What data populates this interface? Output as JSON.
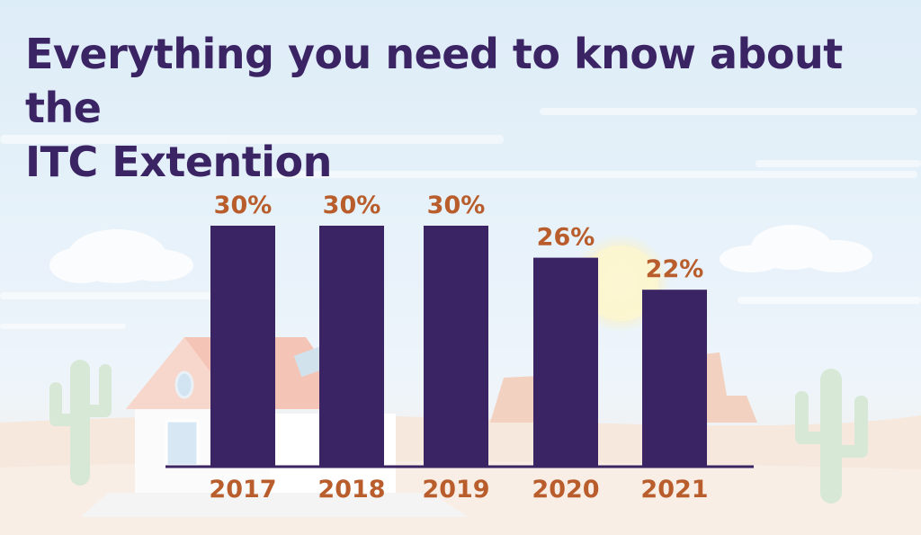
{
  "title_lines": [
    "Everything you need to know about the",
    "ITC Extention"
  ],
  "colors": {
    "title": "#3b2464",
    "bar": "#3b2464",
    "label": "#b85d2b",
    "axis": "#3b2464",
    "sky_top": "#dcecf7",
    "sky_bottom": "#eef5fb",
    "ground": "#f3e1d3"
  },
  "chart_data": {
    "type": "bar",
    "title": "Everything you need to know about the ITC Extention",
    "categories": [
      "2017",
      "2018",
      "2019",
      "2020",
      "2021"
    ],
    "values": [
      30,
      30,
      30,
      26,
      22
    ],
    "value_labels": [
      "30%",
      "30%",
      "30%",
      "26%",
      "22%"
    ],
    "unit": "%",
    "xlabel": "",
    "ylabel": "",
    "ylim": [
      0,
      38
    ],
    "grid": false,
    "legend": "none"
  }
}
